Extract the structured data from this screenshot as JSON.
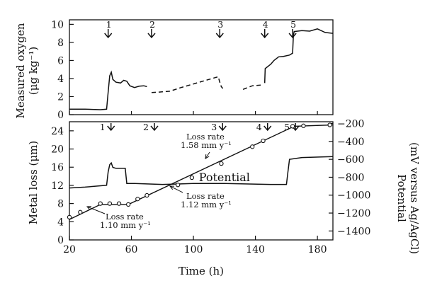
{
  "chart_data": [
    {
      "id": "oxygen",
      "type": "line",
      "ylabel_line1": "Measured oxygen",
      "ylabel_line2": "(μg kg⁻¹)",
      "xlim": [
        20,
        190
      ],
      "ylim": [
        0,
        10.5
      ],
      "yticks": [
        0,
        2,
        4,
        6,
        8,
        10
      ],
      "markers": [
        {
          "label": "1",
          "x": 45
        },
        {
          "label": "2",
          "x": 73
        },
        {
          "label": "3",
          "x": 117
        },
        {
          "label": "4",
          "x": 146
        },
        {
          "label": "5",
          "x": 164
        }
      ],
      "series": [
        {
          "style": "solid",
          "points": [
            [
              20,
              0.6
            ],
            [
              30,
              0.6
            ],
            [
              40,
              0.55
            ],
            [
              44,
              0.6
            ],
            [
              45,
              2.5
            ],
            [
              46,
              4.3
            ],
            [
              47,
              4.7
            ],
            [
              48,
              3.9
            ],
            [
              50,
              3.6
            ],
            [
              53,
              3.5
            ],
            [
              55,
              3.8
            ],
            [
              57,
              3.7
            ],
            [
              59,
              3.2
            ],
            [
              62,
              3.0
            ],
            [
              65,
              3.15
            ],
            [
              68,
              3.2
            ],
            [
              70,
              3.1
            ]
          ]
        },
        {
          "style": "dashed",
          "points": [
            [
              73,
              2.45
            ],
            [
              78,
              2.5
            ],
            [
              85,
              2.6
            ],
            [
              92,
              3.0
            ],
            [
              100,
              3.4
            ],
            [
              108,
              3.8
            ],
            [
              114,
              4.1
            ],
            [
              116,
              4.2
            ],
            [
              117,
              3.6
            ],
            [
              118,
              3.1
            ],
            [
              119,
              2.9
            ]
          ]
        },
        {
          "style": "dashed",
          "points": [
            [
              132,
              2.8
            ],
            [
              138,
              3.2
            ],
            [
              145,
              3.3
            ]
          ]
        },
        {
          "style": "solid",
          "points": [
            [
              146,
              3.5
            ],
            [
              146.3,
              5.1
            ],
            [
              150,
              5.6
            ],
            [
              152,
              6.0
            ],
            [
              155,
              6.4
            ],
            [
              158,
              6.45
            ],
            [
              162,
              6.6
            ],
            [
              164,
              6.8
            ],
            [
              164.5,
              8.8
            ],
            [
              165,
              9.2
            ],
            [
              170,
              9.3
            ],
            [
              175,
              9.25
            ],
            [
              180,
              9.5
            ],
            [
              185,
              9.1
            ],
            [
              190,
              9.0
            ]
          ]
        }
      ]
    },
    {
      "id": "metal-loss",
      "type": "line",
      "xlabel": "Time (h)",
      "ylabel": "Metal loss (μm)",
      "ylabel2_line1": "Potential",
      "ylabel2_line2": "(mV versus Ag/AgCl)",
      "xlim": [
        20,
        190
      ],
      "xticks": [
        20,
        60,
        100,
        140,
        180
      ],
      "ylim": [
        0,
        26
      ],
      "yticks": [
        0,
        4,
        8,
        12,
        16,
        20,
        24
      ],
      "y2lim": [
        -1500,
        -180
      ],
      "y2ticks": [
        -200,
        -400,
        -600,
        -800,
        -1000,
        -1200,
        -1400
      ],
      "markers": [
        {
          "label": "1",
          "x": 45
        },
        {
          "label": "2",
          "x": 73
        },
        {
          "label": "3",
          "x": 117
        },
        {
          "label": "4",
          "x": 146
        },
        {
          "label": "5",
          "x": 164
        }
      ],
      "metal_loss": {
        "line": [
          [
            20,
            4.5
          ],
          [
            40,
            7.8
          ],
          [
            58,
            7.8
          ],
          [
            165,
            25.0
          ],
          [
            190,
            25.3
          ]
        ],
        "points": [
          [
            20,
            5.0
          ],
          [
            27,
            6.1
          ],
          [
            40,
            8.0
          ],
          [
            46,
            8.0
          ],
          [
            52,
            8.0
          ],
          [
            58,
            7.8
          ],
          [
            64,
            9.0
          ],
          [
            70,
            9.8
          ],
          [
            90,
            12.1
          ],
          [
            99,
            13.7
          ],
          [
            118,
            16.8
          ],
          [
            138,
            20.5
          ],
          [
            145,
            21.8
          ],
          [
            164,
            25.0
          ],
          [
            171,
            25.1
          ],
          [
            188,
            25.3
          ]
        ]
      },
      "potential": {
        "name": "Potential",
        "points": [
          [
            20,
            -920
          ],
          [
            30,
            -910
          ],
          [
            44,
            -890
          ],
          [
            45,
            -740
          ],
          [
            46,
            -660
          ],
          [
            47,
            -640
          ],
          [
            48,
            -690
          ],
          [
            50,
            -700
          ],
          [
            56,
            -700
          ],
          [
            57,
            -870
          ],
          [
            62,
            -870
          ],
          [
            80,
            -880
          ],
          [
            100,
            -870
          ],
          [
            120,
            -870
          ],
          [
            150,
            -880
          ],
          [
            160,
            -880
          ],
          [
            161,
            -740
          ],
          [
            162,
            -600
          ],
          [
            170,
            -580
          ],
          [
            190,
            -570
          ]
        ]
      },
      "annotations": [
        {
          "line1": "Loss rate",
          "line2": "1.58 mm y⁻¹"
        },
        {
          "line1": "Loss rate",
          "line2": "1.12 mm y⁻¹"
        },
        {
          "line1": "Loss rate",
          "line2": "1.10 mm y⁻¹"
        }
      ]
    }
  ]
}
